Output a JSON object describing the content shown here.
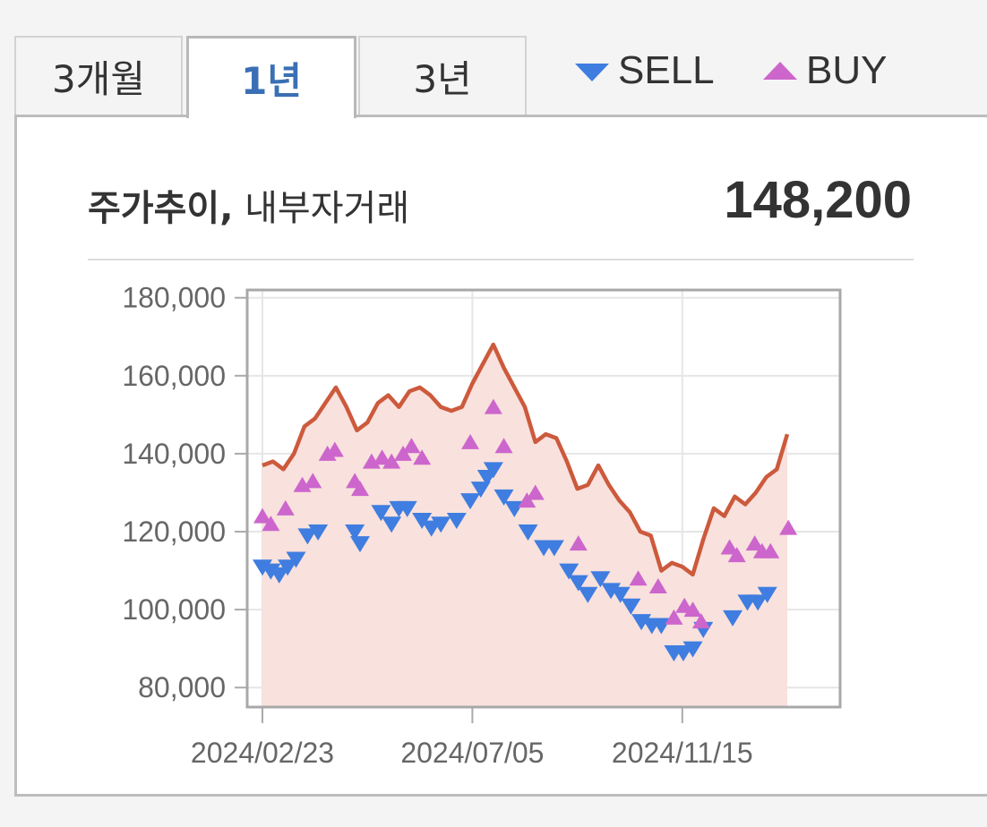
{
  "tabs": [
    {
      "label": "3개월",
      "active": false
    },
    {
      "label": "1년",
      "active": true
    },
    {
      "label": "3년",
      "active": false
    }
  ],
  "legend": {
    "sell": {
      "label": "SELL",
      "color": "#3f7de0"
    },
    "buy": {
      "label": "BUY",
      "color": "#cc66cc"
    }
  },
  "header": {
    "title_bold": "주가추이,",
    "title_rest": "내부자거래",
    "price": "148,200"
  },
  "chart_data": {
    "type": "line",
    "title": "",
    "xlabel": "",
    "ylabel": "",
    "ylim": [
      75000,
      182000
    ],
    "yticks": [
      80000,
      100000,
      120000,
      140000,
      160000,
      180000
    ],
    "ytick_labels": [
      "80,000",
      "100,000",
      "120,000",
      "140,000",
      "160,000",
      "180,000"
    ],
    "xtick_labels": [
      "2024/02/23",
      "2024/07/05",
      "2024/11/15"
    ],
    "xtick_index": [
      0,
      20,
      40
    ],
    "colors": {
      "line": "#cc5a3c",
      "fill": "#f9e1dd"
    },
    "price": [
      137000,
      138000,
      136000,
      140000,
      147000,
      149000,
      153000,
      157000,
      152000,
      146000,
      148000,
      153000,
      155000,
      152000,
      156000,
      157000,
      155000,
      152000,
      151000,
      152000,
      158000,
      163000,
      168000,
      162000,
      157000,
      152000,
      143000,
      145000,
      144000,
      138000,
      131000,
      132000,
      137000,
      132000,
      128000,
      125000,
      120000,
      119000,
      110000,
      112000,
      111000,
      109000,
      118000,
      126000,
      124000,
      129000,
      127000,
      130000,
      134000,
      136000,
      145000
    ],
    "series": [
      {
        "name": "SELL",
        "marker": "down-triangle",
        "points": [
          [
            0,
            111000
          ],
          [
            0.8,
            110000
          ],
          [
            1.6,
            109000
          ],
          [
            2.4,
            111000
          ],
          [
            3.2,
            113000
          ],
          [
            4.3,
            119000
          ],
          [
            5.3,
            120000
          ],
          [
            8.8,
            120000
          ],
          [
            9.3,
            117000
          ],
          [
            11.3,
            125000
          ],
          [
            12.3,
            122000
          ],
          [
            13,
            126000
          ],
          [
            13.8,
            126000
          ],
          [
            15.2,
            123000
          ],
          [
            16.1,
            121000
          ],
          [
            17,
            122000
          ],
          [
            18.5,
            123000
          ],
          [
            19.8,
            128000
          ],
          [
            20.8,
            131000
          ],
          [
            21.4,
            134000
          ],
          [
            22,
            136000
          ],
          [
            23,
            129000
          ],
          [
            24,
            126000
          ],
          [
            25.3,
            120000
          ],
          [
            26.8,
            116000
          ],
          [
            27.8,
            116000
          ],
          [
            29.2,
            110000
          ],
          [
            30.1,
            107000
          ],
          [
            31,
            104000
          ],
          [
            32.2,
            108000
          ],
          [
            33.2,
            105000
          ],
          [
            34.1,
            104000
          ],
          [
            35.1,
            101000
          ],
          [
            36.1,
            97000
          ],
          [
            37.1,
            96000
          ],
          [
            38,
            96000
          ],
          [
            39.2,
            89000
          ],
          [
            40.1,
            89000
          ],
          [
            41,
            90000
          ],
          [
            42,
            95000
          ],
          [
            44.8,
            98000
          ],
          [
            46.2,
            102000
          ],
          [
            47.2,
            102000
          ],
          [
            48.1,
            104000
          ]
        ]
      },
      {
        "name": "BUY",
        "marker": "up-triangle",
        "points": [
          [
            0,
            124000
          ],
          [
            0.8,
            122000
          ],
          [
            2.2,
            126000
          ],
          [
            3.8,
            132000
          ],
          [
            4.8,
            133000
          ],
          [
            6.2,
            140000
          ],
          [
            6.9,
            141000
          ],
          [
            8.8,
            133000
          ],
          [
            9.3,
            131000
          ],
          [
            10.4,
            138000
          ],
          [
            11.4,
            139000
          ],
          [
            12.3,
            138000
          ],
          [
            13.4,
            140000
          ],
          [
            14.2,
            142000
          ],
          [
            15.2,
            139000
          ],
          [
            19.8,
            143000
          ],
          [
            22,
            152000
          ],
          [
            23,
            142000
          ],
          [
            25.2,
            128000
          ],
          [
            26,
            130000
          ],
          [
            30.1,
            117000
          ],
          [
            35.8,
            108000
          ],
          [
            37.7,
            106000
          ],
          [
            39.2,
            98000
          ],
          [
            40.2,
            101000
          ],
          [
            41,
            100000
          ],
          [
            41.8,
            97000
          ],
          [
            44.5,
            116000
          ],
          [
            45.2,
            114000
          ],
          [
            46.9,
            117000
          ],
          [
            47.6,
            115000
          ],
          [
            48.4,
            115000
          ],
          [
            50.1,
            121000
          ]
        ]
      }
    ]
  }
}
